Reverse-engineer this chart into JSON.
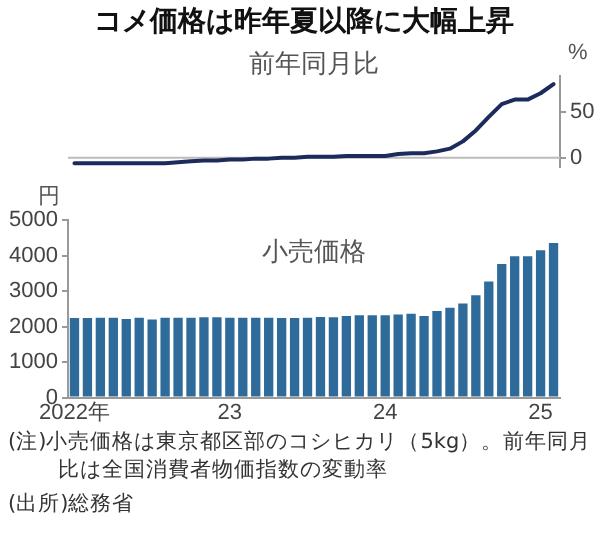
{
  "chart_data": [
    {
      "type": "line",
      "title": "コメ価格は昨年夏以降に大幅上昇",
      "subtitle": "前年同月比",
      "ylabel": "%",
      "categories": [
        null,
        null,
        null,
        null,
        null,
        null,
        null,
        null,
        null,
        null,
        null,
        null,
        null,
        null,
        null,
        null,
        null,
        null,
        null,
        null,
        null,
        null,
        null,
        null,
        null,
        null,
        null,
        null,
        null,
        null,
        null,
        null,
        null,
        null,
        null,
        null,
        null,
        null
      ],
      "series": [
        {
          "color": "#1c2b5c",
          "values": [
            -6,
            -6,
            -6,
            -6,
            -6,
            -6,
            -6,
            -6,
            -5,
            -4,
            -3,
            -3,
            -2,
            -2,
            -1,
            -1,
            0,
            0,
            1,
            1,
            1,
            2,
            2,
            2,
            2,
            4,
            5,
            5,
            7,
            10,
            18,
            30,
            45,
            59,
            64,
            64,
            71,
            81
          ]
        }
      ],
      "ylim": [
        -10,
        90
      ],
      "yticks": [
        0,
        50
      ],
      "ref_lines": [
        {
          "axis": "y",
          "value": 0,
          "color": "#bbbbbb"
        }
      ],
      "tick_labels": "y",
      "grid": false,
      "legend": false,
      "marker": "none"
    },
    {
      "type": "bar",
      "title": "小売価格",
      "ylabel": "円",
      "categories": [
        "2022年",
        null,
        null,
        null,
        null,
        null,
        null,
        null,
        null,
        null,
        null,
        null,
        "23",
        null,
        null,
        null,
        null,
        null,
        null,
        null,
        null,
        null,
        null,
        null,
        "24",
        null,
        null,
        null,
        null,
        null,
        null,
        null,
        null,
        null,
        null,
        null,
        "25",
        null
      ],
      "values": [
        2240,
        2240,
        2250,
        2250,
        2210,
        2250,
        2200,
        2250,
        2250,
        2250,
        2260,
        2260,
        2250,
        2250,
        2250,
        2250,
        2240,
        2240,
        2250,
        2270,
        2260,
        2300,
        2320,
        2320,
        2320,
        2340,
        2360,
        2300,
        2440,
        2530,
        2650,
        2880,
        3270,
        3760,
        3980,
        3980,
        4150,
        4350
      ],
      "color": "#2f6b9a",
      "ylim": [
        0,
        5000
      ],
      "yticks": [
        0,
        1000,
        2000,
        3000,
        4000,
        5000
      ],
      "grid": false,
      "legend": false,
      "annotations": [
        "(注)小売価格は東京都区部のコシヒカリ（5kg）。前年同月比は全国消費者物価指数の変動率",
        "(出所)総務省"
      ]
    }
  ]
}
